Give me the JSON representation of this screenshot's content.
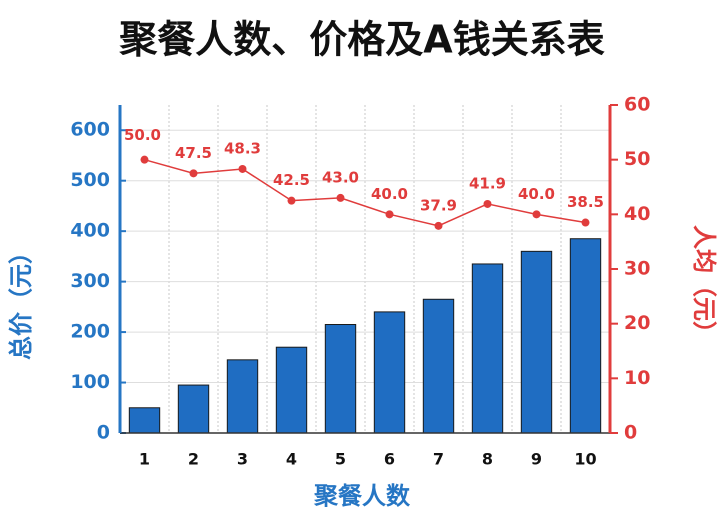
{
  "chart_data": {
    "type": "bar",
    "title": "聚餐人数、价格及A钱关系表",
    "x_label": "聚餐人数",
    "y_label": "总价（元）",
    "y2_label": "人均（元）",
    "categories": [
      "1",
      "2",
      "3",
      "4",
      "5",
      "6",
      "7",
      "8",
      "9",
      "10"
    ],
    "series": [
      {
        "name": "总价",
        "type": "bar",
        "axis": "y",
        "color": "#1f6dc2",
        "values": [
          50,
          95,
          145,
          170,
          215,
          240,
          265,
          335,
          360,
          385
        ]
      },
      {
        "name": "人均",
        "type": "line",
        "axis": "y2",
        "color": "#e03c3c",
        "values": [
          50.0,
          47.5,
          48.3,
          42.5,
          43.0,
          40.0,
          37.9,
          41.9,
          40.0,
          38.5
        ],
        "value_labels": [
          "50.0",
          "47.5",
          "48.3",
          "42.5",
          "43.0",
          "40.0",
          "37.9",
          "41.9",
          "40.0",
          "38.5"
        ]
      }
    ],
    "ylim": [
      0,
      650
    ],
    "yticks": [
      0,
      100,
      200,
      300,
      400,
      500,
      600
    ],
    "y2lim": [
      0,
      60
    ],
    "y2ticks": [
      0,
      10,
      20,
      30,
      40,
      50,
      60
    ],
    "grid": true
  }
}
